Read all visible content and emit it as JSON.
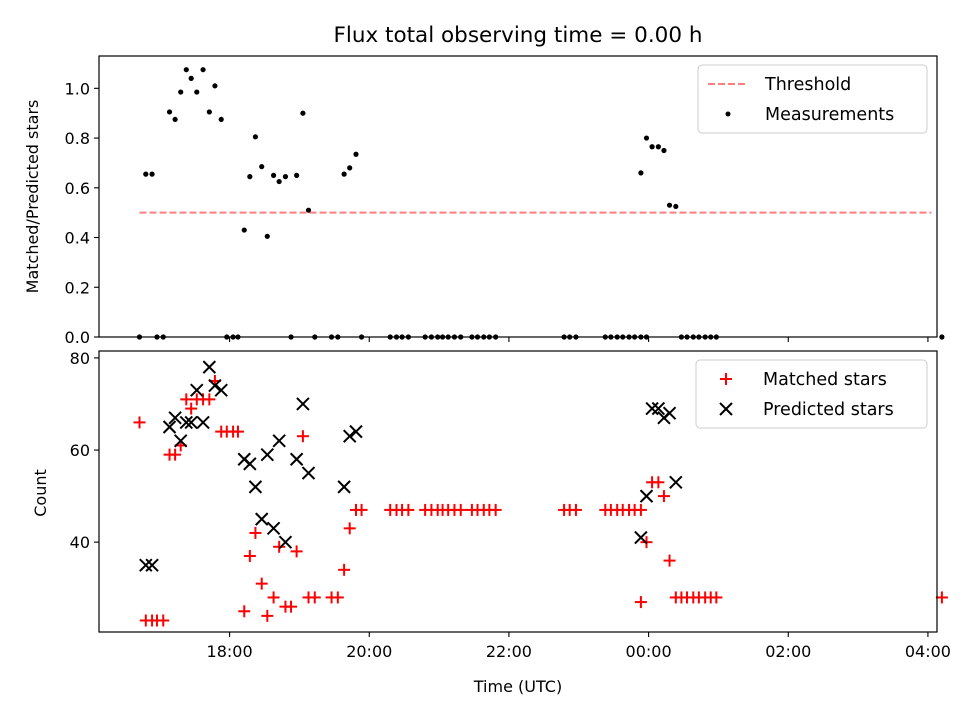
{
  "title": "Flux total observing time = 0.00 h",
  "xlabel": "Time (UTC)",
  "x_tick_labels": [
    "18:00",
    "20:00",
    "22:00",
    "00:00",
    "02:00",
    "04:00"
  ],
  "chart_data": [
    {
      "type": "scatter",
      "ylabel": "Matched/Predicted stars",
      "xlabel": "",
      "x_unit": "hours since 18:00 UTC",
      "xlim": [
        -1.87,
        10.13
      ],
      "ylim": [
        0,
        1.13
      ],
      "y_ticks": [
        0.0,
        0.2,
        0.4,
        0.6,
        0.8,
        1.0
      ],
      "x_ticks": [
        0,
        2,
        4,
        6,
        8,
        10
      ],
      "legend": "top-right",
      "series": [
        {
          "name": "Threshold",
          "style": "dashed-line",
          "color": "#ff7f7f",
          "points": [
            [
              -1.29,
              0.5
            ],
            [
              10.05,
              0.5
            ]
          ]
        },
        {
          "name": "Measurements",
          "style": "dot",
          "color": "#000000",
          "points": [
            [
              -1.29,
              0.0
            ],
            [
              -1.2,
              0.655
            ],
            [
              -1.11,
              0.655
            ],
            [
              -1.04,
              0.0
            ],
            [
              -0.95,
              0.0
            ],
            [
              -0.86,
              0.905
            ],
            [
              -0.78,
              0.875
            ],
            [
              -0.7,
              0.985
            ],
            [
              -0.62,
              1.075
            ],
            [
              -0.55,
              1.04
            ],
            [
              -0.47,
              0.985
            ],
            [
              -0.38,
              1.075
            ],
            [
              -0.29,
              0.905
            ],
            [
              -0.21,
              1.01
            ],
            [
              -0.12,
              0.875
            ],
            [
              -0.04,
              0.0
            ],
            [
              0.05,
              0.0
            ],
            [
              0.12,
              0.0
            ],
            [
              0.21,
              0.43
            ],
            [
              0.29,
              0.645
            ],
            [
              0.37,
              0.805
            ],
            [
              0.46,
              0.685
            ],
            [
              0.54,
              0.405
            ],
            [
              0.63,
              0.65
            ],
            [
              0.71,
              0.625
            ],
            [
              0.8,
              0.645
            ],
            [
              0.88,
              0.0
            ],
            [
              0.96,
              0.65
            ],
            [
              1.05,
              0.9
            ],
            [
              1.13,
              0.51
            ],
            [
              1.22,
              0.0
            ],
            [
              1.46,
              0.0
            ],
            [
              1.55,
              0.0
            ],
            [
              1.64,
              0.655
            ],
            [
              1.72,
              0.68
            ],
            [
              1.81,
              0.735
            ],
            [
              1.89,
              0.0
            ],
            [
              2.3,
              0.0
            ],
            [
              2.39,
              0.0
            ],
            [
              2.47,
              0.0
            ],
            [
              2.56,
              0.0
            ],
            [
              2.8,
              0.0
            ],
            [
              2.89,
              0.0
            ],
            [
              2.98,
              0.0
            ],
            [
              3.05,
              0.0
            ],
            [
              3.13,
              0.0
            ],
            [
              3.22,
              0.0
            ],
            [
              3.31,
              0.0
            ],
            [
              3.47,
              0.0
            ],
            [
              3.55,
              0.0
            ],
            [
              3.64,
              0.0
            ],
            [
              3.72,
              0.0
            ],
            [
              3.81,
              0.0
            ],
            [
              4.79,
              0.0
            ],
            [
              4.87,
              0.0
            ],
            [
              4.96,
              0.0
            ],
            [
              5.38,
              0.0
            ],
            [
              5.46,
              0.0
            ],
            [
              5.55,
              0.0
            ],
            [
              5.63,
              0.0
            ],
            [
              5.72,
              0.0
            ],
            [
              5.8,
              0.0
            ],
            [
              5.89,
              0.0
            ],
            [
              5.97,
              0.0
            ],
            [
              5.89,
              0.66
            ],
            [
              5.97,
              0.8
            ],
            [
              6.05,
              0.765
            ],
            [
              6.14,
              0.765
            ],
            [
              6.22,
              0.75
            ],
            [
              6.3,
              0.53
            ],
            [
              6.39,
              0.525
            ],
            [
              6.47,
              0.0
            ],
            [
              6.55,
              0.0
            ],
            [
              6.64,
              0.0
            ],
            [
              6.72,
              0.0
            ],
            [
              6.81,
              0.0
            ],
            [
              6.89,
              0.0
            ],
            [
              6.97,
              0.0
            ],
            [
              10.2,
              0.0
            ]
          ]
        }
      ]
    },
    {
      "type": "scatter",
      "ylabel": "Count",
      "xlabel": "Time (UTC)",
      "x_unit": "hours since 18:00 UTC",
      "xlim": [
        -1.87,
        10.13
      ],
      "ylim": [
        20.5,
        81.5
      ],
      "y_ticks": [
        40,
        60,
        80
      ],
      "x_ticks": [
        0,
        2,
        4,
        6,
        8,
        10
      ],
      "legend": "top-right",
      "series": [
        {
          "name": "Matched stars",
          "style": "plus",
          "color": "#ff0000",
          "points": [
            [
              -1.29,
              66
            ],
            [
              -1.2,
              23
            ],
            [
              -1.11,
              23
            ],
            [
              -1.04,
              23
            ],
            [
              -0.95,
              23
            ],
            [
              -0.86,
              59
            ],
            [
              -0.78,
              59
            ],
            [
              -0.7,
              61
            ],
            [
              -0.62,
              71
            ],
            [
              -0.55,
              69
            ],
            [
              -0.47,
              71
            ],
            [
              -0.38,
              71
            ],
            [
              -0.29,
              71
            ],
            [
              -0.21,
              75
            ],
            [
              -0.12,
              64
            ],
            [
              -0.04,
              64
            ],
            [
              0.05,
              64
            ],
            [
              0.12,
              64
            ],
            [
              0.21,
              25
            ],
            [
              0.29,
              37
            ],
            [
              0.37,
              42
            ],
            [
              0.46,
              31
            ],
            [
              0.54,
              24
            ],
            [
              0.63,
              28
            ],
            [
              0.71,
              39
            ],
            [
              0.8,
              26
            ],
            [
              0.88,
              26
            ],
            [
              0.96,
              38
            ],
            [
              1.05,
              63
            ],
            [
              1.13,
              28
            ],
            [
              1.22,
              28
            ],
            [
              1.46,
              28
            ],
            [
              1.55,
              28
            ],
            [
              1.64,
              34
            ],
            [
              1.72,
              43
            ],
            [
              1.81,
              47
            ],
            [
              1.89,
              47
            ],
            [
              2.3,
              47
            ],
            [
              2.39,
              47
            ],
            [
              2.47,
              47
            ],
            [
              2.56,
              47
            ],
            [
              2.8,
              47
            ],
            [
              2.89,
              47
            ],
            [
              2.98,
              47
            ],
            [
              3.05,
              47
            ],
            [
              3.13,
              47
            ],
            [
              3.22,
              47
            ],
            [
              3.31,
              47
            ],
            [
              3.47,
              47
            ],
            [
              3.55,
              47
            ],
            [
              3.64,
              47
            ],
            [
              3.72,
              47
            ],
            [
              3.81,
              47
            ],
            [
              4.79,
              47
            ],
            [
              4.87,
              47
            ],
            [
              4.96,
              47
            ],
            [
              5.38,
              47
            ],
            [
              5.46,
              47
            ],
            [
              5.55,
              47
            ],
            [
              5.63,
              47
            ],
            [
              5.72,
              47
            ],
            [
              5.8,
              47
            ],
            [
              5.89,
              47
            ],
            [
              5.89,
              27
            ],
            [
              5.97,
              40
            ],
            [
              6.05,
              53
            ],
            [
              6.14,
              53
            ],
            [
              6.22,
              50
            ],
            [
              6.3,
              36
            ],
            [
              6.39,
              28
            ],
            [
              6.47,
              28
            ],
            [
              6.55,
              28
            ],
            [
              6.64,
              28
            ],
            [
              6.72,
              28
            ],
            [
              6.81,
              28
            ],
            [
              6.89,
              28
            ],
            [
              6.97,
              28
            ],
            [
              10.2,
              28
            ]
          ]
        },
        {
          "name": "Predicted stars",
          "style": "x",
          "color": "#000000",
          "points": [
            [
              -1.2,
              35
            ],
            [
              -1.11,
              35
            ],
            [
              -0.86,
              65
            ],
            [
              -0.78,
              67
            ],
            [
              -0.7,
              62
            ],
            [
              -0.62,
              66
            ],
            [
              -0.55,
              66
            ],
            [
              -0.47,
              73
            ],
            [
              -0.38,
              66
            ],
            [
              -0.29,
              78
            ],
            [
              -0.21,
              74
            ],
            [
              -0.12,
              73
            ],
            [
              0.21,
              58
            ],
            [
              0.29,
              57
            ],
            [
              0.37,
              52
            ],
            [
              0.46,
              45
            ],
            [
              0.54,
              59
            ],
            [
              0.63,
              43
            ],
            [
              0.71,
              62
            ],
            [
              0.8,
              40
            ],
            [
              0.96,
              58
            ],
            [
              1.05,
              70
            ],
            [
              1.13,
              55
            ],
            [
              1.64,
              52
            ],
            [
              1.72,
              63
            ],
            [
              1.81,
              64
            ],
            [
              5.89,
              41
            ],
            [
              5.97,
              50
            ],
            [
              6.05,
              69
            ],
            [
              6.14,
              69
            ],
            [
              6.22,
              67
            ],
            [
              6.3,
              68
            ],
            [
              6.39,
              53
            ]
          ]
        }
      ]
    }
  ]
}
